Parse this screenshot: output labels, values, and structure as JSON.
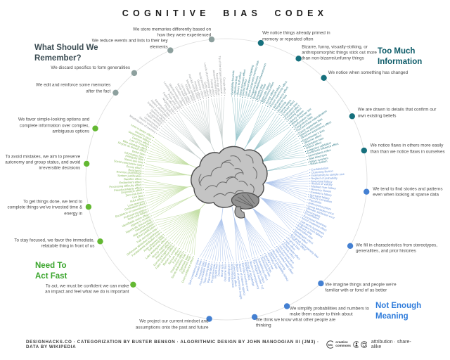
{
  "title": "COGNITIVE BIAS CODEX",
  "center_icon": "brain-illustration",
  "footer": {
    "credits": "DESIGNHACKS.CO · CATEGORIZATION BY BUSTER BENSON · ALGORITHMIC DESIGN BY JOHN MANOOGIAN III (JM3) · DATA BY WIKIPEDIA",
    "cc_label": "creative commons",
    "license": "attribution · share-alike"
  },
  "quadrants": [
    {
      "id": "what-should-we-remember",
      "title": "What Should We\nRemember?",
      "colors": {
        "heading": "#3a4b52",
        "dot": "#8da09e",
        "label": "#9b9ea0",
        "line": "#c6cfce"
      },
      "clusters": [
        {
          "description": "We edit and reinforce some memories after the fact",
          "biases": [
            "Misattribution of memory",
            "Source confusion",
            "Cryptomnesia",
            "False memory",
            "Suggestibility",
            "Spacing effect"
          ]
        },
        {
          "description": "We discard specifics to form generalities",
          "biases": [
            "Implicit associations",
            "Implicit stereotypes",
            "Stereotypical bias",
            "Prejudice",
            "Negativity bias",
            "Fading affect bias"
          ]
        },
        {
          "description": "We reduce events and lists to their key elements",
          "biases": [
            "Peak–end rule",
            "Leveling and sharpening",
            "Misinformation effect",
            "Duration neglect",
            "Serial recall effect",
            "List-length effect",
            "Modality effect",
            "Memory inhibition",
            "Part-list cueing effect",
            "Primacy effect",
            "Recency effect",
            "Serial position effect",
            "Suffix effect"
          ]
        },
        {
          "description": "We store memories differently based on how they were experienced",
          "biases": [
            "Levels of processing effect",
            "Testing effect",
            "Absent-mindedness",
            "Next-in-line effect",
            "Tip of the tongue phenomenon",
            "Google effect"
          ]
        }
      ]
    },
    {
      "id": "too-much-information",
      "title": "Too Much\nInformation",
      "colors": {
        "heading": "#0c5b68",
        "dot": "#16707d",
        "label": "#3a818e",
        "line": "#9ec9cf"
      },
      "clusters": [
        {
          "description": "We notice things already primed in memory or repeated often",
          "biases": [
            "Availability heuristic",
            "Attentional bias",
            "Illusory truth effect",
            "Mere exposure effect",
            "Context effect",
            "Cue-dependent forgetting",
            "Mood-congruent memory bias",
            "Frequency illusion",
            "Baader-Meinhof Phenomenon",
            "Empathy gap",
            "Omission bias",
            "Base rate fallacy"
          ]
        },
        {
          "description": "Bizarre, funny, visually-striking, or anthropomorphic things stick out more than non-bizarre/unfunny things",
          "biases": [
            "Bizarreness effect",
            "Humor effect",
            "Von Restorff effect",
            "Picture superiority effect",
            "Self-relevance effect",
            "Negativity bias"
          ]
        },
        {
          "description": "We notice when something has changed",
          "biases": [
            "Anchoring",
            "Conservatism",
            "Contrast effect",
            "Distinction bias",
            "Focusing effect",
            "Framing effect",
            "Money illusion",
            "Weber–Fechner law"
          ]
        },
        {
          "description": "We are drawn to details that confirm our own existing beliefs",
          "biases": [
            "Confirmation bias",
            "Congruence bias",
            "Post-purchase rationalization",
            "Choice-supportive bias",
            "Selective perception",
            "Observer-expectancy effect",
            "Experimenter's bias",
            "Observer effect",
            "Expectation bias",
            "Ostrich effect",
            "Subjective validation",
            "Continued influence effect",
            "Semmelweis reflex"
          ]
        },
        {
          "description": "We notice flaws in others more easily than than we notice flaws in ourselves",
          "biases": [
            "Bias blind spot",
            "Naïve cynicism",
            "Naïve realism"
          ]
        }
      ]
    },
    {
      "id": "not-enough-meaning",
      "title": "Not Enough\nMeaning",
      "colors": {
        "heading": "#2f7cdb",
        "dot": "#4480d2",
        "label": "#6b94da",
        "line": "#b3c9ee"
      },
      "clusters": [
        {
          "description": "We tend to find stories and patterns even when looking at sparse data",
          "biases": [
            "Confabulation",
            "Clustering illusion",
            "Insensitivity to sample size",
            "Neglect of probability",
            "Anecdotal fallacy",
            "Illusion of validity",
            "Masked man fallacy",
            "Recency illusion",
            "Gambler's fallacy",
            "Hot-hand fallacy",
            "Illusory correlation",
            "Pareidolia",
            "Anthropomorphism"
          ]
        },
        {
          "description": "We fill in characteristics from stereotypes, generalities, and prior histories",
          "biases": [
            "Group attribution error",
            "Ultimate attribution error",
            "Stereotyping",
            "Essentialism",
            "Functional fixedness",
            "Moral credential effect",
            "Just-world hypothesis",
            "Argument from fallacy",
            "Authority bias",
            "Automation bias",
            "Bandwagon effect",
            "Placebo effect"
          ]
        },
        {
          "description": "We imagine things and people we're familiar with or fond of as better",
          "biases": [
            "Out-group homogeneity bias",
            "Cross-race effect",
            "In-group bias",
            "Halo effect",
            "Cheerleader effect",
            "Positivity effect",
            "Not invented here",
            "Reactive devaluation",
            "Well-traveled road effect"
          ]
        },
        {
          "description": "We simplify probabilities and numbers to make them easier to think about",
          "biases": [
            "Mental accounting",
            "Appeal to probability fallacy",
            "Normalcy bias",
            "Murphy's law",
            "Zero sum bias",
            "Survivorship bias",
            "Subadditivity effect",
            "Denomination effect",
            "The magical number 7±2"
          ]
        },
        {
          "description": "We think we know what other people are thinking",
          "biases": [
            "Illusion of transparency",
            "Curse of knowledge",
            "Spotlight effect",
            "Extrinsic incentive error",
            "Illusion of external agency",
            "Illusion of asymmetric insight"
          ]
        },
        {
          "description": "We project our current mindset and assumptions onto the past and future",
          "biases": [
            "Telescoping effect",
            "Rosy retrospection",
            "Hindsight bias",
            "Outcome bias",
            "Moral luck",
            "Declinism",
            "Impact bias",
            "Pessimism bias",
            "Planning fallacy",
            "Time-saving bias",
            "Pro-innovation bias",
            "Projection bias",
            "Restraint bias",
            "Self-consistency bias"
          ]
        }
      ]
    },
    {
      "id": "need-to-act-fast",
      "title": "Need To\nAct Fast",
      "colors": {
        "heading": "#3aa52c",
        "dot": "#63b832",
        "label": "#8aba5c",
        "line": "#c4dfa6"
      },
      "clusters": [
        {
          "description": "To act, we must be confident we can make an impact and feel what we do is important",
          "biases": [
            "Overconfidence effect",
            "Egocentric bias",
            "Optimism bias",
            "Social desirability bias",
            "Third-person effect",
            "Forer effect",
            "Barnum effect",
            "Illusion of control",
            "False consensus effect",
            "Dunning-Kruger effect",
            "Hard-easy effect",
            "Illusory superiority",
            "Lake Wobegone effect",
            "Self-serving bias",
            "Actor-observer bias",
            "Fundamental attribution error",
            "Defensive attribution hypothesis",
            "Trait ascription bias",
            "Effort justification",
            "Risk compensation",
            "Peltzman effect"
          ]
        },
        {
          "description": "To stay focused, we favor the immediate, relatable thing in front of us",
          "biases": [
            "Hyperbolic discounting",
            "Appeal to novelty",
            "Identifiable victim effect"
          ]
        },
        {
          "description": "To get things done, we tend to complete things we've invested time & energy in",
          "biases": [
            "Sunk cost fallacy",
            "Irrational escalation",
            "Escalation of commitment",
            "Generation effect",
            "Loss aversion",
            "IKEA effect",
            "Unit bias",
            "Zero-risk bias",
            "Disposition effect",
            "Pseudocertainty effect",
            "Processing difficulty effect",
            "Endowment effect",
            "Backfire effect"
          ]
        },
        {
          "description": "To avoid mistakes, we aim to preserve autonomy and group status, and avoid irreversible decisions",
          "biases": [
            "System justification",
            "Reverse psychology",
            "Reactance",
            "Decoy effect",
            "Social comparison bias",
            "Status quo bias"
          ]
        },
        {
          "description": "We favor simple-looking options and complete information over complex, ambiguous options",
          "biases": [
            "Ambiguity bias",
            "Information bias",
            "Belief bias",
            "Rhyme as reason effect",
            "Bike-shedding effect",
            "Law of Triviality",
            "Delmore effect",
            "Conjunction fallacy",
            "Occam's razor",
            "Less-is-better effect"
          ]
        }
      ]
    }
  ]
}
